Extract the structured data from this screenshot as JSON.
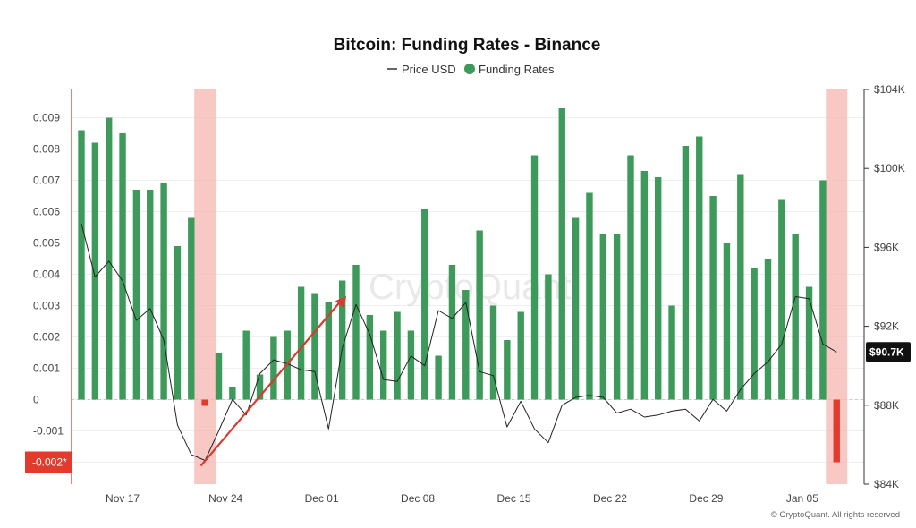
{
  "chart_data": {
    "type": "bar",
    "title": "Bitcoin: Funding Rates - Binance",
    "legend": {
      "placement": "top-center",
      "entries": [
        {
          "label": "Price USD",
          "color": "#333333",
          "marker": "line"
        },
        {
          "label": "Funding Rates",
          "color": "#3d9a5b",
          "marker": "circle"
        }
      ]
    },
    "colors": {
      "positive": "#3d9a5b",
      "negative": "#e23b2e",
      "highlight": "#f4b5b0",
      "price": "#222222",
      "arrow": "#d83a2f"
    },
    "left_axis": {
      "ylim": [
        -0.0027,
        0.0099
      ],
      "ticks": [
        -0.002,
        -0.001,
        0,
        0.001,
        0.002,
        0.003,
        0.004,
        0.005,
        0.006,
        0.007,
        0.008,
        0.009
      ],
      "tick_labels": [
        "-0.002*",
        "-0.001",
        "0",
        "0.001",
        "0.002",
        "0.003",
        "0.004",
        "0.005",
        "0.006",
        "0.007",
        "0.008",
        "0.009"
      ]
    },
    "right_axis": {
      "ylim": [
        84000,
        104000
      ],
      "ticks": [
        84000,
        88000,
        92000,
        96000,
        100000,
        104000
      ],
      "tick_labels": [
        "$84K",
        "$88K",
        "$92K",
        "$96K",
        "$100K",
        "$104K"
      ],
      "current_value_label": "$90.7K",
      "current_value": 90700
    },
    "x_axis": {
      "tick_labels": [
        "Nov 17",
        "Nov 24",
        "Dec 01",
        "Dec 08",
        "Dec 15",
        "Dec 22",
        "Dec 29",
        "Jan 05"
      ],
      "tick_index": [
        3,
        10.5,
        17.5,
        24.5,
        31.5,
        38.5,
        45.5,
        52.5
      ]
    },
    "funding_rates": [
      0.0086,
      0.0082,
      0.009,
      0.0085,
      0.0067,
      0.0067,
      0.0069,
      0.0049,
      0.0058,
      -0.0002,
      0.0015,
      0.0004,
      0.0022,
      0.0008,
      0.002,
      0.0022,
      0.0036,
      0.0034,
      0.0031,
      0.0038,
      0.0043,
      0.0027,
      0.0022,
      0.0028,
      0.0022,
      0.0061,
      0.0014,
      0.0043,
      0.0035,
      0.0054,
      0.003,
      0.0019,
      0.0028,
      0.0078,
      0.004,
      0.0093,
      0.0058,
      0.0066,
      0.0053,
      0.0053,
      0.0078,
      0.0073,
      0.0071,
      0.003,
      0.0081,
      0.0084,
      0.0065,
      0.005,
      0.0072,
      0.0042,
      0.0045,
      0.0064,
      0.0053,
      0.0036,
      0.007,
      -0.002
    ],
    "price_usd": [
      97200,
      94500,
      95300,
      94300,
      92300,
      92900,
      91300,
      87000,
      85500,
      85200,
      86700,
      88300,
      87500,
      89600,
      90300,
      90100,
      89800,
      89700,
      86800,
      90900,
      93100,
      91600,
      89300,
      89200,
      90500,
      90000,
      92800,
      92400,
      93200,
      89700,
      89500,
      86900,
      88200,
      86800,
      86100,
      88000,
      88400,
      88500,
      88400,
      87600,
      87800,
      87400,
      87500,
      87700,
      87800,
      87200,
      88300,
      87700,
      88800,
      89600,
      90200,
      91100,
      93500,
      93400,
      91100,
      90700
    ],
    "highlights": [
      {
        "from_index": 9,
        "to_index": 9
      },
      {
        "from_index": 55,
        "to_index": 55
      }
    ],
    "annotation_arrow": {
      "from_index": 8.7,
      "from_value": 0.0,
      "to_index": 19.3,
      "to_value": 0.0033
    },
    "watermark": "CryptoQuant",
    "copyright": "© CryptoQuant. All rights reserved",
    "grid": true
  }
}
